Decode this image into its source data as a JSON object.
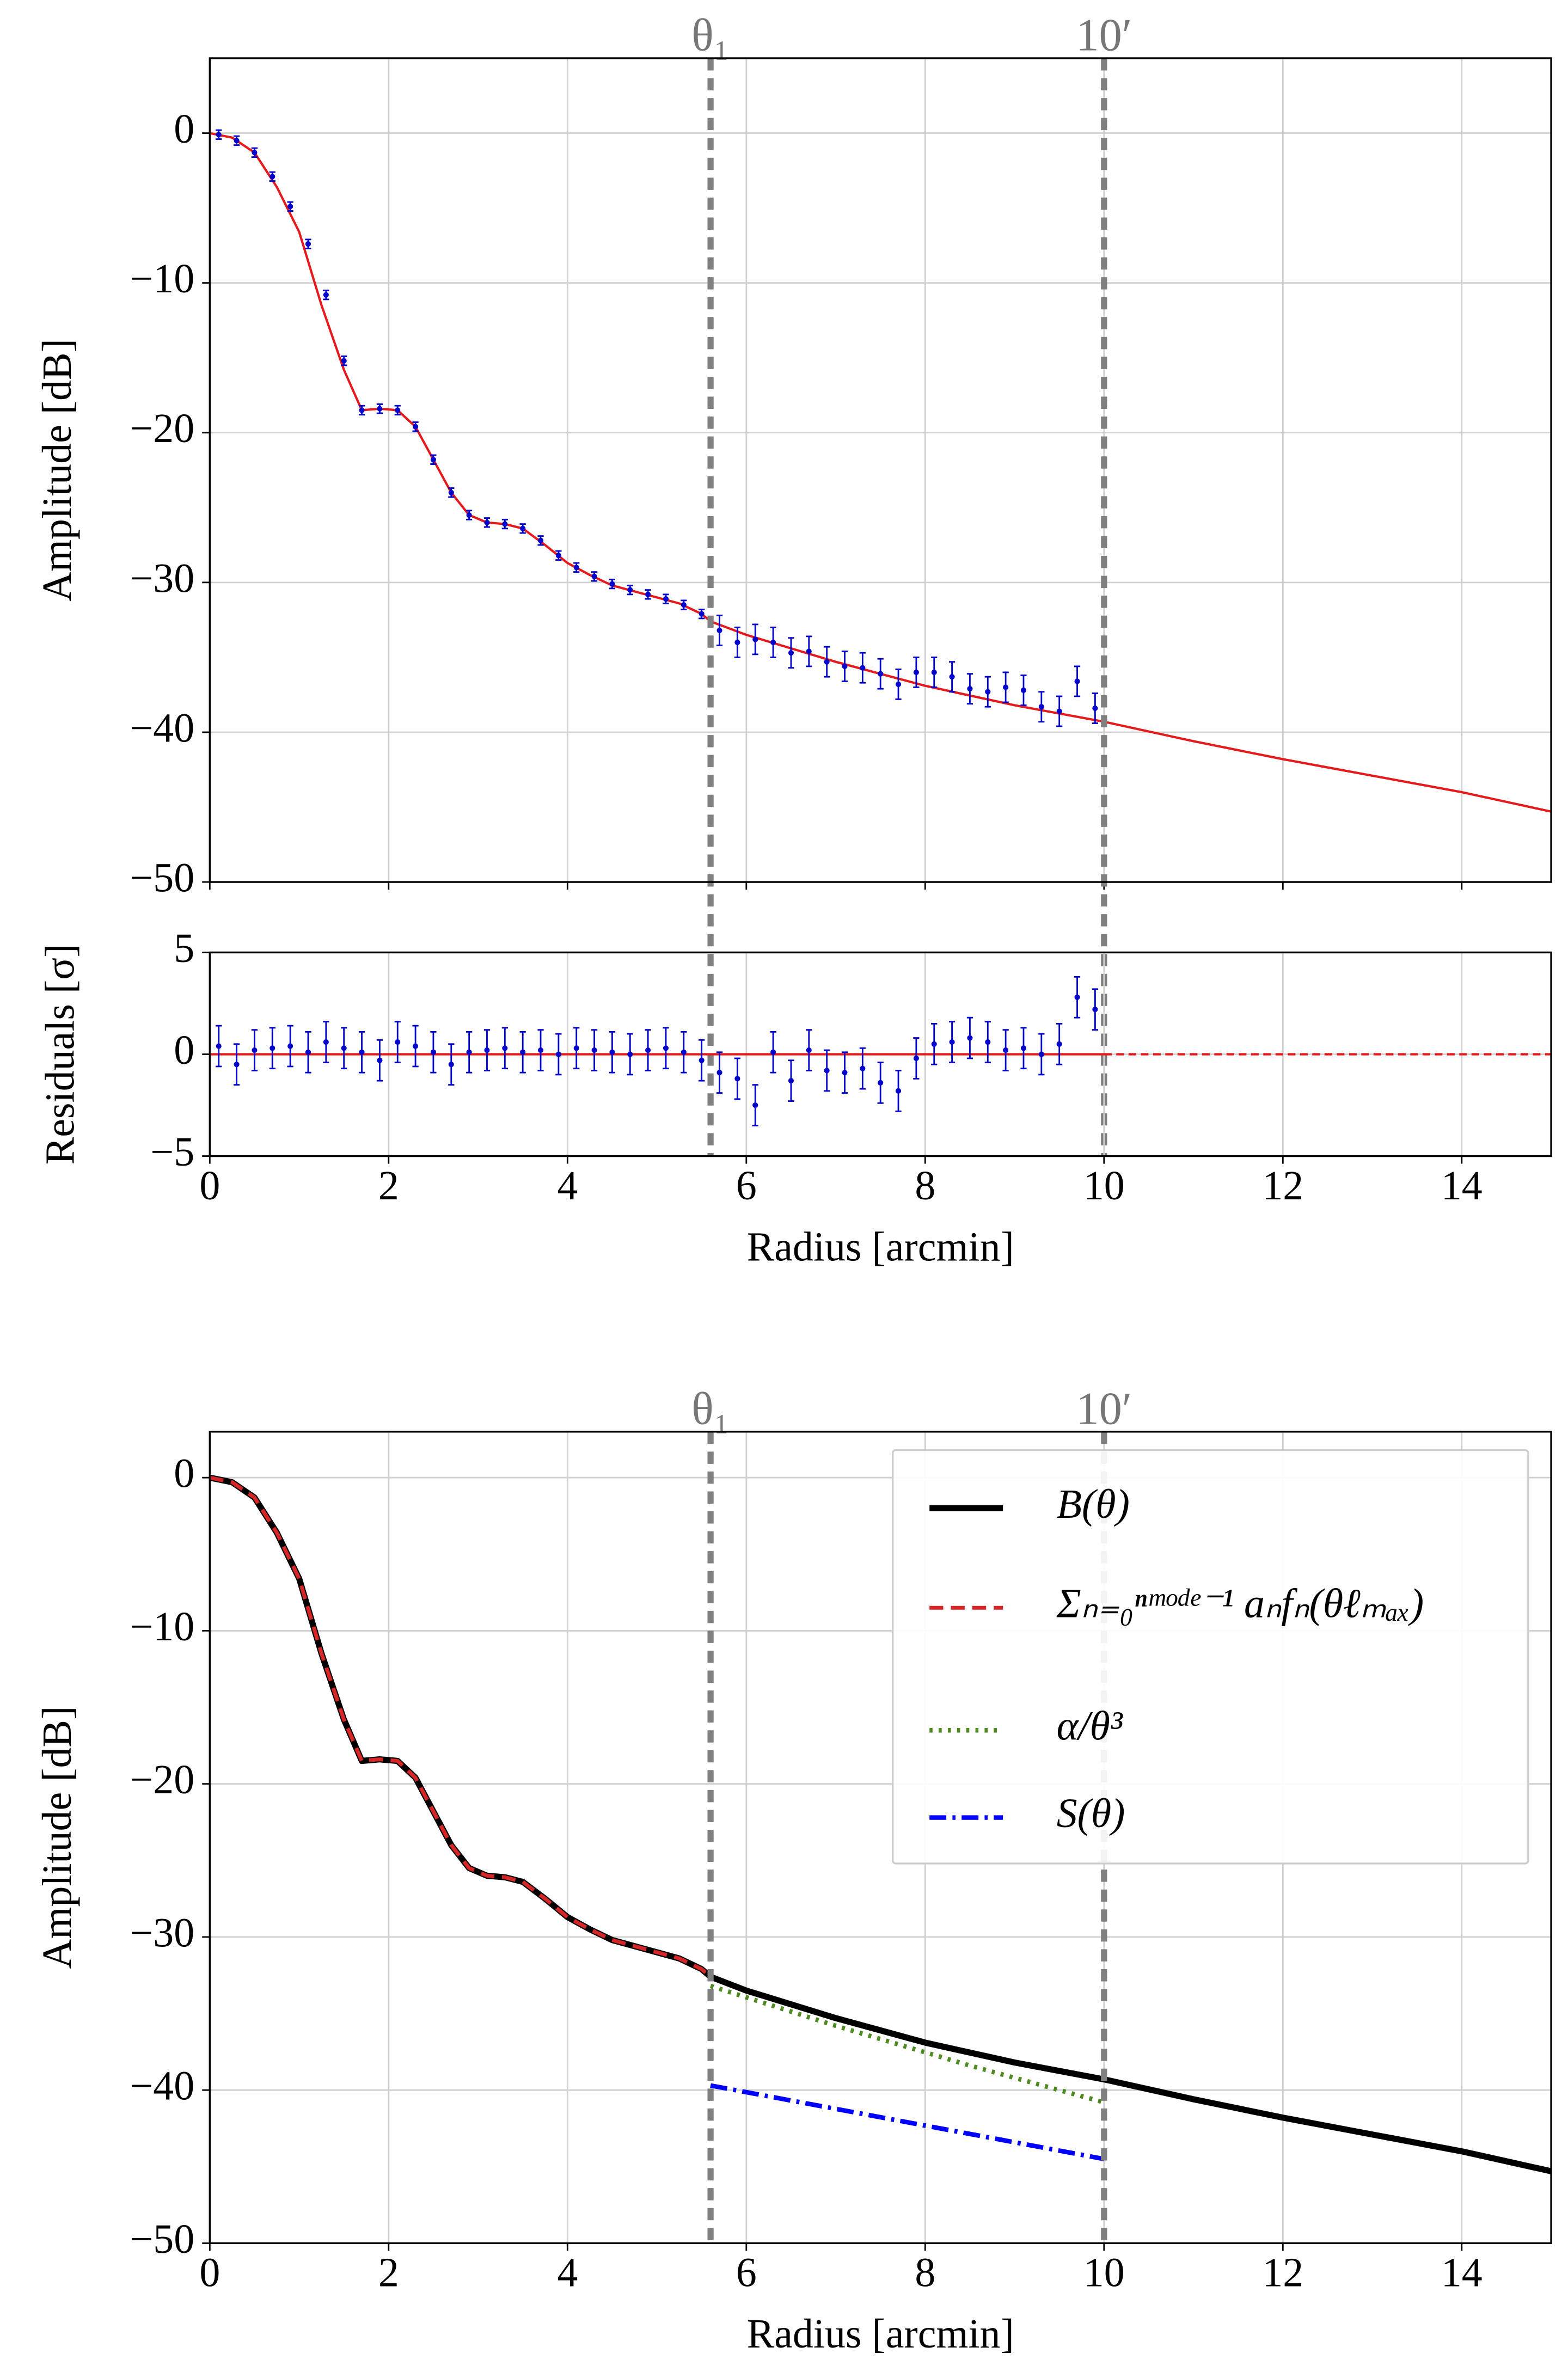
{
  "chart_data": [
    {
      "type": "errorbar",
      "ylabel": "Amplitude [dB]",
      "xlim": [
        0,
        15
      ],
      "xticks": [
        0,
        2,
        4,
        6,
        8,
        10,
        12,
        14
      ],
      "ylim": [
        -50,
        5
      ],
      "yticks": [
        {
          "value": -50,
          "label": "−50"
        },
        {
          "value": -40,
          "label": "−40"
        },
        {
          "value": -30,
          "label": "−30"
        },
        {
          "value": -20,
          "label": "−20"
        },
        {
          "value": -10,
          "label": "−10"
        },
        0
      ],
      "grid": true,
      "vlines": [
        {
          "x": 5.6,
          "label": "θ₁"
        },
        {
          "x": 10,
          "label": "10′"
        }
      ],
      "fit": {
        "color": "#e41a1c",
        "x": [
          0,
          0.25,
          0.5,
          0.75,
          1.0,
          1.25,
          1.5,
          1.7,
          1.9,
          2.1,
          2.3,
          2.5,
          2.7,
          2.9,
          3.1,
          3.3,
          3.5,
          3.75,
          4.0,
          4.25,
          4.5,
          4.75,
          5.0,
          5.25,
          5.5,
          5.6,
          6,
          7,
          8,
          9,
          10,
          11,
          12,
          13,
          14,
          15
        ],
        "values": [
          0,
          -0.3,
          -1.3,
          -3.6,
          -6.6,
          -11.5,
          -15.8,
          -18.5,
          -18.4,
          -18.5,
          -19.6,
          -21.8,
          -24.0,
          -25.5,
          -26.0,
          -26.1,
          -26.4,
          -27.5,
          -28.7,
          -29.5,
          -30.2,
          -30.6,
          -31.0,
          -31.4,
          -32.1,
          -32.6,
          -33.5,
          -35.3,
          -36.9,
          -38.2,
          -39.3,
          -40.6,
          -41.8,
          -42.9,
          -44.0,
          -45.3
        ]
      },
      "points": {
        "color": "#0000cc",
        "x": [
          0.1,
          0.3,
          0.5,
          0.7,
          0.9,
          1.1,
          1.3,
          1.5,
          1.7,
          1.9,
          2.1,
          2.3,
          2.5,
          2.7,
          2.9,
          3.1,
          3.3,
          3.5,
          3.7,
          3.9,
          4.1,
          4.3,
          4.5,
          4.7,
          4.9,
          5.1,
          5.3,
          5.5,
          5.7,
          5.9,
          6.1,
          6.3,
          6.5,
          6.7,
          6.9,
          7.1,
          7.3,
          7.5,
          7.7,
          7.9,
          8.1,
          8.3,
          8.5,
          8.7,
          8.9,
          9.1,
          9.3,
          9.5,
          9.7,
          9.9
        ],
        "values": [
          -0.1,
          -0.5,
          -1.3,
          -2.9,
          -4.9,
          -7.4,
          -10.8,
          -15.2,
          -18.5,
          -18.4,
          -18.5,
          -19.6,
          -21.8,
          -24.0,
          -25.5,
          -26.0,
          -26.1,
          -26.4,
          -27.2,
          -28.2,
          -29.0,
          -29.6,
          -30.1,
          -30.5,
          -30.8,
          -31.1,
          -31.5,
          -32.1,
          -33.2,
          -34.0,
          -33.8,
          -34.0,
          -34.7,
          -34.6,
          -35.3,
          -35.6,
          -35.7,
          -36.1,
          -36.8,
          -36.0,
          -36.0,
          -36.3,
          -37.1,
          -37.3,
          -37.0,
          -37.2,
          -38.3,
          -38.6,
          -36.6,
          -38.4
        ],
        "errors": [
          0.3,
          0.3,
          0.3,
          0.3,
          0.3,
          0.3,
          0.3,
          0.3,
          0.3,
          0.3,
          0.3,
          0.3,
          0.3,
          0.3,
          0.3,
          0.3,
          0.3,
          0.3,
          0.3,
          0.3,
          0.3,
          0.3,
          0.3,
          0.3,
          0.3,
          0.3,
          0.3,
          0.3,
          1.0,
          1.0,
          1.0,
          1.0,
          1.0,
          1.0,
          1.0,
          1.0,
          1.0,
          1.0,
          1.0,
          1.0,
          1.0,
          1.0,
          1.0,
          1.0,
          1.0,
          1.0,
          1.0,
          1.0,
          1.0,
          1.0
        ]
      }
    },
    {
      "type": "errorbar",
      "xlabel": "Radius [arcmin]",
      "ylabel": "Residuals [σ]",
      "xlim": [
        0,
        15
      ],
      "xticks": [
        0,
        2,
        4,
        6,
        8,
        10,
        12,
        14
      ],
      "ylim": [
        -5,
        5
      ],
      "yticks": [
        {
          "value": -5,
          "label": "−5"
        },
        0,
        5
      ],
      "grid": true,
      "lines": [
        {
          "x": [
            0,
            10
          ],
          "values": [
            0,
            0
          ],
          "color": "#e41a1c"
        },
        {
          "x": [
            10,
            15
          ],
          "values": [
            0,
            0
          ],
          "color": "#e41a1c",
          "dash": true
        }
      ],
      "points": {
        "color": "#0000cc",
        "x": [
          0.1,
          0.3,
          0.5,
          0.7,
          0.9,
          1.1,
          1.3,
          1.5,
          1.7,
          1.9,
          2.1,
          2.3,
          2.5,
          2.7,
          2.9,
          3.1,
          3.3,
          3.5,
          3.7,
          3.9,
          4.1,
          4.3,
          4.5,
          4.7,
          4.9,
          5.1,
          5.3,
          5.5,
          5.7,
          5.9,
          6.1,
          6.3,
          6.5,
          6.7,
          6.9,
          7.1,
          7.3,
          7.5,
          7.7,
          7.9,
          8.1,
          8.3,
          8.5,
          8.7,
          8.9,
          9.1,
          9.3,
          9.5,
          9.7,
          9.9
        ],
        "values": [
          0.4,
          -0.5,
          0.2,
          0.3,
          0.4,
          0.1,
          0.6,
          0.3,
          0.1,
          -0.3,
          0.6,
          0.4,
          0.1,
          -0.5,
          0.1,
          0.2,
          0.3,
          0.1,
          0.2,
          0.0,
          0.3,
          0.2,
          0.1,
          0.0,
          0.2,
          0.3,
          0.1,
          -0.3,
          -0.9,
          -1.2,
          -2.5,
          0.1,
          -1.3,
          0.2,
          -0.8,
          -0.9,
          -0.7,
          -1.4,
          -1.8,
          -0.2,
          0.5,
          0.6,
          0.8,
          0.6,
          0.2,
          0.3,
          0.0,
          0.5,
          2.8,
          2.2
        ],
        "errors": [
          1.0,
          1.0,
          1.0,
          1.0,
          1.0,
          1.0,
          1.0,
          1.0,
          1.0,
          1.0,
          1.0,
          1.0,
          1.0,
          1.0,
          1.0,
          1.0,
          1.0,
          1.0,
          1.0,
          1.0,
          1.0,
          1.0,
          1.0,
          1.0,
          1.0,
          1.0,
          1.0,
          1.0,
          1.0,
          1.0,
          1.0,
          1.0,
          1.0,
          1.0,
          1.0,
          1.0,
          1.0,
          1.0,
          1.0,
          1.0,
          1.0,
          1.0,
          1.0,
          1.0,
          1.0,
          1.0,
          1.0,
          1.0,
          1.0,
          1.0
        ]
      }
    },
    {
      "type": "line",
      "xlabel": "Radius [arcmin]",
      "ylabel": "Amplitude [dB]",
      "xlim": [
        0,
        15
      ],
      "xticks": [
        0,
        2,
        4,
        6,
        8,
        10,
        12,
        14
      ],
      "ylim": [
        -50,
        3
      ],
      "yticks": [
        {
          "value": -50,
          "label": "−50"
        },
        {
          "value": -40,
          "label": "−40"
        },
        {
          "value": -30,
          "label": "−30"
        },
        {
          "value": -20,
          "label": "−20"
        },
        {
          "value": -10,
          "label": "−10"
        },
        0
      ],
      "grid": true,
      "legend": "upper right",
      "vlines": [
        {
          "x": 5.6,
          "label": "θ₁"
        },
        {
          "x": 10,
          "label": "10′"
        }
      ],
      "series": [
        {
          "name": "B(θ)",
          "color": "#000000",
          "style": "solid",
          "x": [
            0,
            0.25,
            0.5,
            0.75,
            1.0,
            1.25,
            1.5,
            1.7,
            1.9,
            2.1,
            2.3,
            2.5,
            2.7,
            2.9,
            3.1,
            3.3,
            3.5,
            3.75,
            4.0,
            4.25,
            4.5,
            4.75,
            5.0,
            5.25,
            5.5,
            5.6,
            6,
            7,
            8,
            9,
            10,
            11,
            12,
            13,
            14,
            15
          ],
          "values": [
            0,
            -0.3,
            -1.3,
            -3.6,
            -6.6,
            -11.5,
            -15.8,
            -18.5,
            -18.4,
            -18.5,
            -19.6,
            -21.8,
            -24.0,
            -25.5,
            -26.0,
            -26.1,
            -26.4,
            -27.5,
            -28.7,
            -29.5,
            -30.2,
            -30.6,
            -31.0,
            -31.4,
            -32.1,
            -32.6,
            -33.5,
            -35.3,
            -36.9,
            -38.2,
            -39.3,
            -40.6,
            -41.8,
            -42.9,
            -44.0,
            -45.3
          ]
        },
        {
          "name": "Σₙ₌₀ⁿᵐᵒᵈᵉ⁻¹ aₙfₙ(θℓₘₐₓ)",
          "color": "#d62728",
          "style": "dashed",
          "x": [
            0,
            0.25,
            0.5,
            0.75,
            1.0,
            1.25,
            1.5,
            1.7,
            1.9,
            2.1,
            2.3,
            2.5,
            2.7,
            2.9,
            3.1,
            3.3,
            3.5,
            3.75,
            4.0,
            4.25,
            4.5,
            4.75,
            5.0,
            5.25,
            5.5,
            5.6
          ],
          "values": [
            0,
            -0.3,
            -1.3,
            -3.6,
            -6.6,
            -11.5,
            -15.8,
            -18.5,
            -18.4,
            -18.5,
            -19.6,
            -21.8,
            -24.0,
            -25.5,
            -26.0,
            -26.1,
            -26.4,
            -27.5,
            -28.7,
            -29.5,
            -30.2,
            -30.6,
            -31.0,
            -31.4,
            -32.1,
            -32.6
          ]
        },
        {
          "name": "α/θ³",
          "color": "#4d8a1f",
          "style": "dotted",
          "x": [
            5.6,
            7,
            8.5,
            10
          ],
          "values": [
            -33.2,
            -35.8,
            -38.4,
            -40.8
          ]
        },
        {
          "name": "S(θ)",
          "color": "#0000ff",
          "style": "dashdot",
          "x": [
            5.6,
            10
          ],
          "values": [
            -39.7,
            -44.5
          ]
        }
      ]
    }
  ]
}
